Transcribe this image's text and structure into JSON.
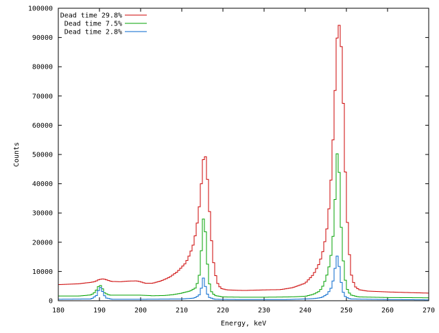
{
  "chart_data": {
    "type": "line",
    "title": "",
    "xlabel": "Energy, keV",
    "ylabel": "Counts",
    "xlim": [
      180,
      270
    ],
    "ylim": [
      0,
      100000
    ],
    "x_ticks": [
      180,
      190,
      200,
      210,
      220,
      230,
      240,
      250,
      260,
      270
    ],
    "y_ticks": [
      0,
      10000,
      20000,
      30000,
      40000,
      50000,
      60000,
      70000,
      80000,
      90000,
      100000
    ],
    "x_tick_labels": [
      "180",
      "190",
      "200",
      "210",
      "220",
      "230",
      "240",
      "250",
      "260",
      "270"
    ],
    "y_tick_labels": [
      "0",
      "10000",
      "20000",
      "30000",
      "40000",
      "50000",
      "60000",
      "70000",
      "80000",
      "90000",
      "100000"
    ],
    "grid": false,
    "legend_position": "top-left",
    "step_style": true,
    "series": [
      {
        "name": "Dead time 29.8%",
        "color": "#cc0000",
        "points": [
          [
            180,
            5500
          ],
          [
            185,
            5800
          ],
          [
            188,
            6300
          ],
          [
            189,
            6600
          ],
          [
            190,
            7300
          ],
          [
            191,
            7500
          ],
          [
            192,
            7000
          ],
          [
            193,
            6600
          ],
          [
            195,
            6500
          ],
          [
            197,
            6700
          ],
          [
            199,
            6800
          ],
          [
            200,
            6500
          ],
          [
            201,
            6000
          ],
          [
            203,
            6000
          ],
          [
            205,
            6800
          ],
          [
            207,
            8000
          ],
          [
            209,
            10000
          ],
          [
            211,
            13000
          ],
          [
            212,
            16000
          ],
          [
            213,
            20000
          ],
          [
            213.8,
            27000
          ],
          [
            214.5,
            35000
          ],
          [
            215,
            45000
          ],
          [
            215.5,
            51500
          ],
          [
            216,
            47000
          ],
          [
            216.5,
            36000
          ],
          [
            217,
            25000
          ],
          [
            217.5,
            16000
          ],
          [
            218,
            10000
          ],
          [
            218.7,
            6000
          ],
          [
            219.5,
            4200
          ],
          [
            221,
            3700
          ],
          [
            225,
            3500
          ],
          [
            230,
            3700
          ],
          [
            234,
            3800
          ],
          [
            237,
            4500
          ],
          [
            240,
            6000
          ],
          [
            242,
            9000
          ],
          [
            243.5,
            13000
          ],
          [
            244.5,
            18000
          ],
          [
            245.3,
            25000
          ],
          [
            246,
            35000
          ],
          [
            246.6,
            50000
          ],
          [
            247.2,
            70000
          ],
          [
            247.7,
            89000
          ],
          [
            248.1,
            95500
          ],
          [
            248.6,
            91000
          ],
          [
            249,
            80000
          ],
          [
            249.5,
            55000
          ],
          [
            250,
            33000
          ],
          [
            250.6,
            18000
          ],
          [
            251.2,
            9000
          ],
          [
            252,
            5000
          ],
          [
            253,
            3800
          ],
          [
            255,
            3300
          ],
          [
            260,
            3000
          ],
          [
            265,
            2800
          ],
          [
            270,
            2600
          ]
        ]
      },
      {
        "name": "Dead time 7.5%",
        "color": "#00a000",
        "points": [
          [
            180,
            1600
          ],
          [
            185,
            1600
          ],
          [
            188,
            2000
          ],
          [
            189,
            3000
          ],
          [
            189.7,
            4800
          ],
          [
            190.2,
            5300
          ],
          [
            190.7,
            4200
          ],
          [
            191.3,
            2600
          ],
          [
            192.5,
            1900
          ],
          [
            195,
            1900
          ],
          [
            200,
            1900
          ],
          [
            203,
            1700
          ],
          [
            206,
            1800
          ],
          [
            208,
            2100
          ],
          [
            210,
            2600
          ],
          [
            212,
            3300
          ],
          [
            213.5,
            4500
          ],
          [
            214.3,
            9000
          ],
          [
            214.8,
            18000
          ],
          [
            215.2,
            28000
          ],
          [
            215.6,
            27500
          ],
          [
            216,
            17000
          ],
          [
            216.5,
            8000
          ],
          [
            217,
            3500
          ],
          [
            218,
            1800
          ],
          [
            220,
            1300
          ],
          [
            225,
            1200
          ],
          [
            230,
            1200
          ],
          [
            236,
            1300
          ],
          [
            240,
            1500
          ],
          [
            242,
            2200
          ],
          [
            243.5,
            3300
          ],
          [
            244.5,
            5500
          ],
          [
            245.3,
            9000
          ],
          [
            246,
            13000
          ],
          [
            246.6,
            19000
          ],
          [
            247.1,
            29000
          ],
          [
            247.5,
            44000
          ],
          [
            247.9,
            54000
          ],
          [
            248.2,
            46000
          ],
          [
            248.6,
            29000
          ],
          [
            249.1,
            16000
          ],
          [
            249.6,
            8000
          ],
          [
            250.2,
            4000
          ],
          [
            251,
            2000
          ],
          [
            253,
            1300
          ],
          [
            260,
            1100
          ],
          [
            270,
            1000
          ]
        ]
      },
      {
        "name": "Dead time 2.8%",
        "color": "#0066cc",
        "points": [
          [
            180,
            500
          ],
          [
            188,
            600
          ],
          [
            189.3,
            1800
          ],
          [
            189.9,
            4000
          ],
          [
            190.3,
            4600
          ],
          [
            190.8,
            3000
          ],
          [
            191.5,
            1000
          ],
          [
            193,
            500
          ],
          [
            200,
            500
          ],
          [
            210,
            600
          ],
          [
            213,
            900
          ],
          [
            214.2,
            1800
          ],
          [
            214.8,
            4500
          ],
          [
            215.2,
            8000
          ],
          [
            215.6,
            6000
          ],
          [
            216,
            3000
          ],
          [
            216.6,
            1200
          ],
          [
            218,
            500
          ],
          [
            225,
            400
          ],
          [
            235,
            400
          ],
          [
            242,
            700
          ],
          [
            244,
            1100
          ],
          [
            245.3,
            2200
          ],
          [
            246.2,
            4000
          ],
          [
            246.8,
            7000
          ],
          [
            247.3,
            11500
          ],
          [
            247.7,
            15500
          ],
          [
            248.1,
            13500
          ],
          [
            248.6,
            7500
          ],
          [
            249.1,
            3300
          ],
          [
            249.8,
            1300
          ],
          [
            251,
            600
          ],
          [
            260,
            400
          ],
          [
            270,
            300
          ]
        ]
      }
    ]
  }
}
